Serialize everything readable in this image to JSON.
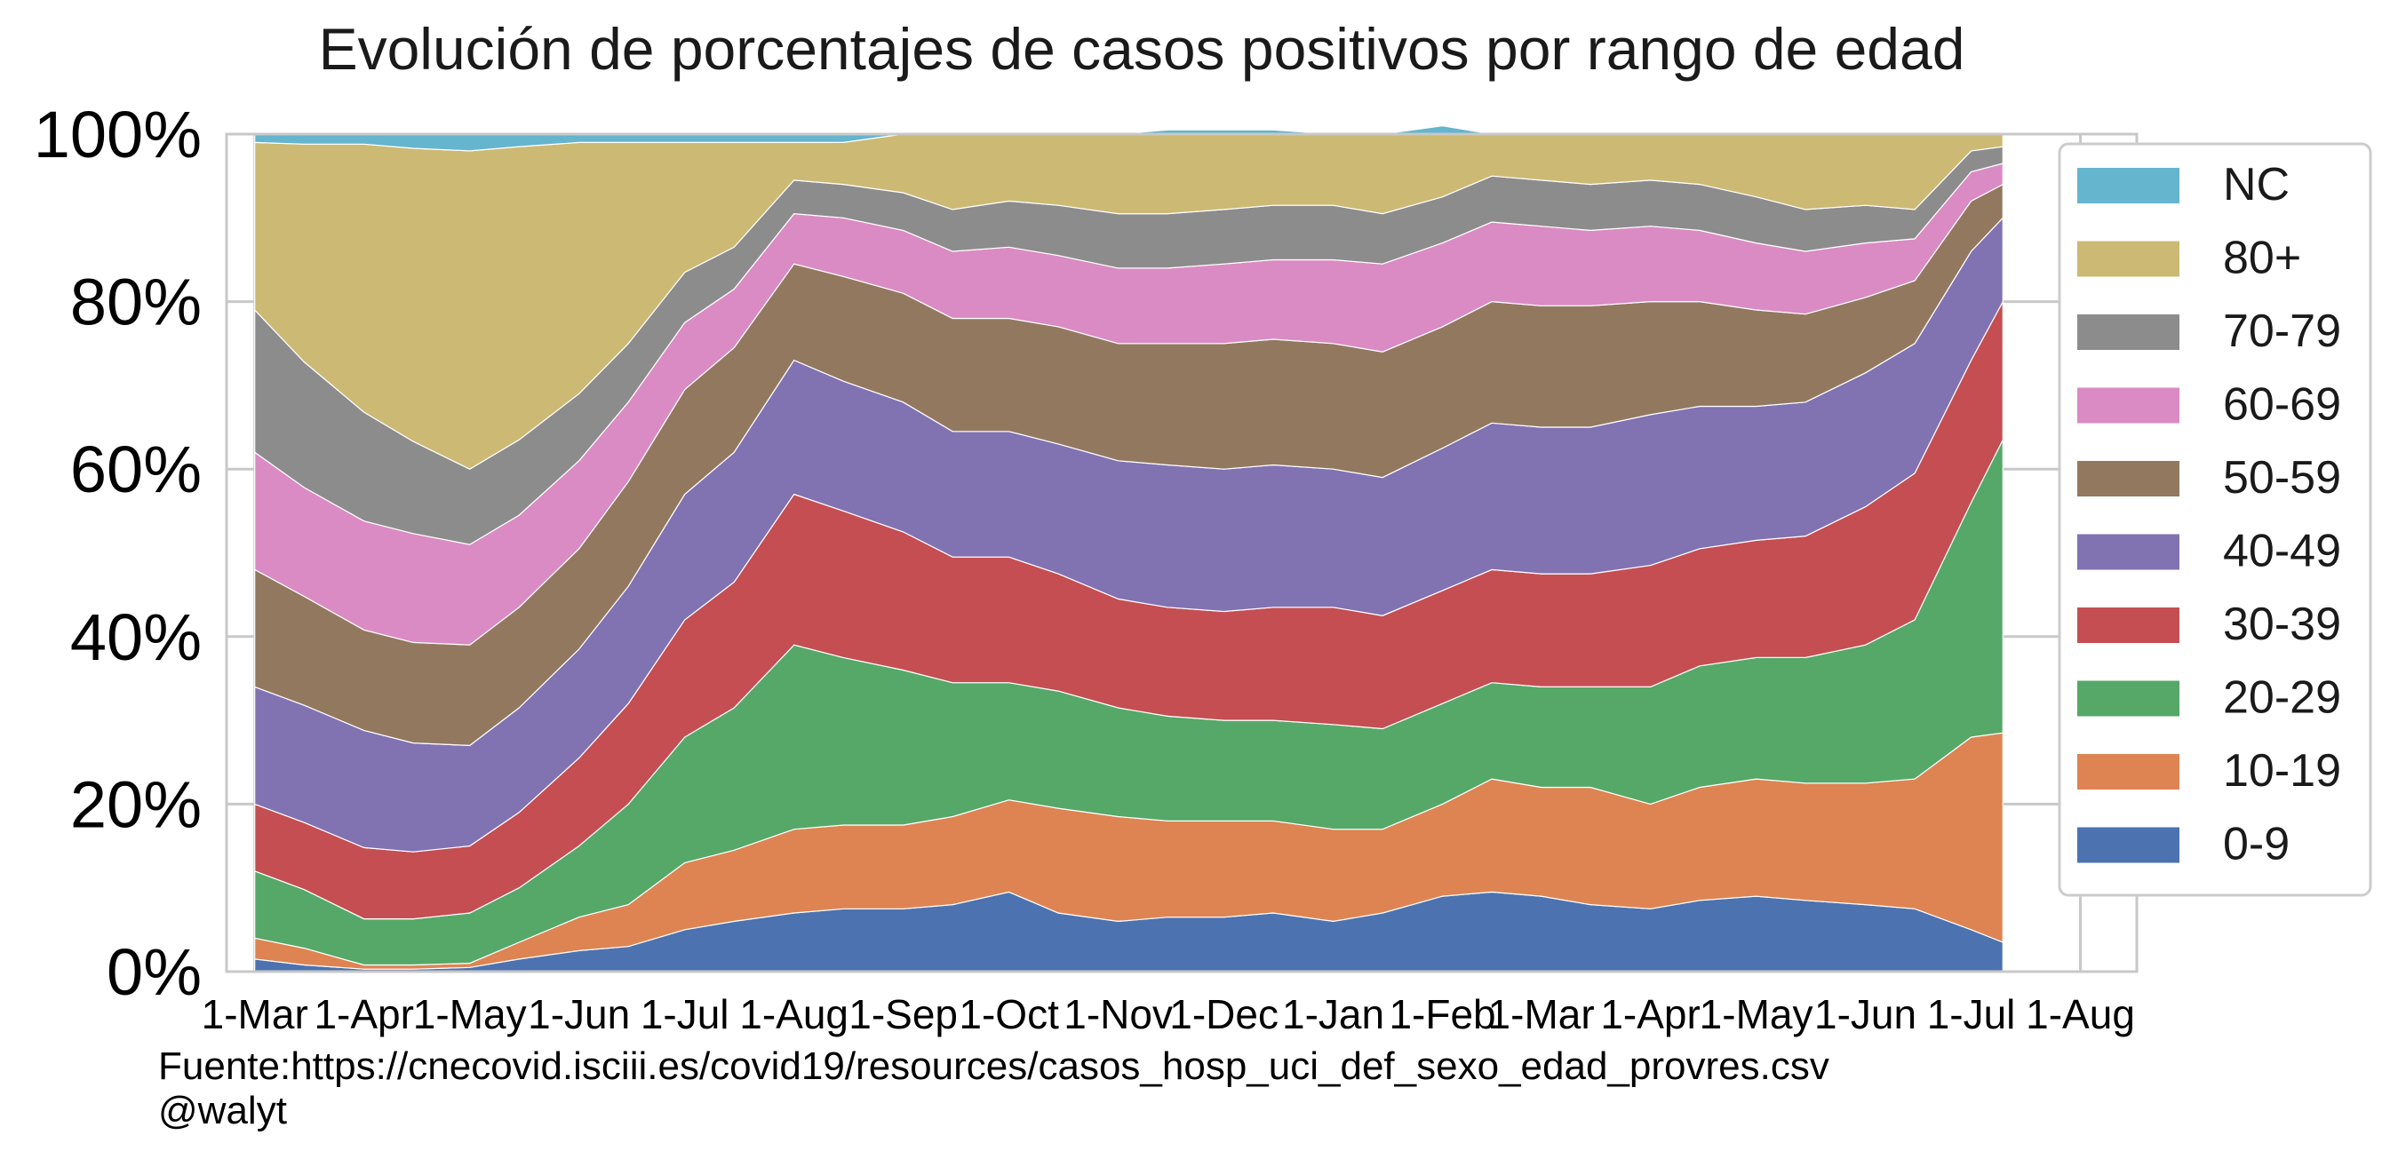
{
  "chart_data": {
    "type": "area",
    "stacked": true,
    "normalized": true,
    "title": "Evolución de porcentajes de casos positivos por rango de edad",
    "source": "Fuente:https://cnecovid.isciii.es/covid19/resources/casos_hosp_uci_def_sexo_edad_provres.csv",
    "author": "@walyt",
    "ylim": [
      0,
      100
    ],
    "yticks": [
      "0%",
      "20%",
      "40%",
      "60%",
      "80%",
      "100%"
    ],
    "ytick_values": [
      0,
      20,
      40,
      60,
      80,
      100
    ],
    "xticks": [
      "1-Mar",
      "1-Apr",
      "1-May",
      "1-Jun",
      "1-Jul",
      "1-Aug",
      "1-Sep",
      "1-Oct",
      "1-Nov",
      "1-Dec",
      "1-Jan",
      "1-Feb",
      "1-Mar",
      "1-Apr",
      "1-May",
      "1-Jun",
      "1-Jul",
      "1-Aug"
    ],
    "xtick_dates": [
      "2020-03-01",
      "2020-04-01",
      "2020-05-01",
      "2020-06-01",
      "2020-07-01",
      "2020-08-01",
      "2020-09-01",
      "2020-10-01",
      "2020-11-01",
      "2020-12-01",
      "2021-01-01",
      "2021-02-01",
      "2021-03-01",
      "2021-04-01",
      "2021-05-01",
      "2021-06-01",
      "2021-07-01",
      "2021-08-01"
    ],
    "xlim": [
      "2020-02-22",
      "2021-08-17"
    ],
    "grid": true,
    "legend_position": "right",
    "dates": [
      "2020-03-01",
      "2020-03-15",
      "2020-04-01",
      "2020-04-15",
      "2020-05-01",
      "2020-05-15",
      "2020-06-01",
      "2020-06-15",
      "2020-07-01",
      "2020-07-15",
      "2020-08-01",
      "2020-08-15",
      "2020-09-01",
      "2020-09-15",
      "2020-10-01",
      "2020-10-15",
      "2020-11-01",
      "2020-11-15",
      "2020-12-01",
      "2020-12-15",
      "2021-01-01",
      "2021-01-15",
      "2021-02-01",
      "2021-02-15",
      "2021-03-01",
      "2021-03-15",
      "2021-04-01",
      "2021-04-15",
      "2021-05-01",
      "2021-05-15",
      "2021-06-01",
      "2021-06-15",
      "2021-07-01",
      "2021-07-10"
    ],
    "series": [
      {
        "name": "0-9",
        "color": "#4c72b0",
        "values": [
          1.5,
          0.8,
          0.3,
          0.3,
          0.5,
          1.5,
          2.5,
          3.0,
          5.0,
          6.0,
          7.0,
          7.5,
          7.5,
          8.0,
          9.5,
          7.0,
          6.0,
          6.5,
          6.5,
          7.0,
          6.0,
          7.0,
          9.0,
          9.5,
          9.0,
          8.0,
          7.5,
          8.5,
          9.0,
          8.5,
          8.0,
          7.5,
          5.0,
          3.5
        ]
      },
      {
        "name": "10-19",
        "color": "#dd8452",
        "values": [
          2.5,
          2.0,
          0.5,
          0.5,
          0.5,
          2.0,
          4.0,
          5.0,
          8.0,
          8.5,
          10.0,
          10.0,
          10.0,
          10.5,
          11.0,
          12.5,
          12.5,
          11.5,
          11.5,
          11.0,
          11.0,
          10.0,
          11.0,
          13.5,
          13.0,
          14.0,
          12.5,
          13.5,
          14.0,
          14.0,
          14.5,
          15.5,
          23.0,
          25.0
        ]
      },
      {
        "name": "20-29",
        "color": "#55a868",
        "values": [
          8.0,
          7.0,
          5.5,
          5.5,
          6.0,
          6.5,
          8.5,
          12.0,
          15.0,
          17.0,
          22.0,
          20.0,
          18.5,
          16.0,
          14.0,
          14.0,
          13.0,
          12.5,
          12.0,
          12.0,
          12.5,
          12.0,
          12.0,
          11.5,
          12.0,
          12.0,
          14.0,
          14.5,
          14.5,
          15.0,
          16.5,
          19.0,
          28.0,
          35.0
        ]
      },
      {
        "name": "30-39",
        "color": "#c44e52",
        "values": [
          8.0,
          8.0,
          8.5,
          8.0,
          8.0,
          9.0,
          10.5,
          12.0,
          14.0,
          15.0,
          18.0,
          17.5,
          16.5,
          15.0,
          15.0,
          14.0,
          13.0,
          13.0,
          13.0,
          13.5,
          14.0,
          13.5,
          13.5,
          13.5,
          13.5,
          13.5,
          14.5,
          14.0,
          14.0,
          14.5,
          16.5,
          17.5,
          17.0,
          16.5
        ]
      },
      {
        "name": "40-49",
        "color": "#8172b2",
        "values": [
          14.0,
          14.0,
          14.0,
          13.0,
          12.0,
          12.5,
          13.0,
          14.0,
          15.0,
          15.5,
          16.0,
          15.5,
          15.5,
          15.0,
          15.0,
          15.5,
          16.5,
          17.0,
          17.0,
          17.0,
          16.5,
          16.5,
          17.0,
          17.5,
          17.5,
          17.5,
          18.0,
          17.0,
          16.0,
          16.0,
          16.0,
          15.5,
          13.0,
          10.0
        ]
      },
      {
        "name": "50-59",
        "color": "#937860",
        "values": [
          14.0,
          13.0,
          12.0,
          12.0,
          12.0,
          12.0,
          12.0,
          12.5,
          12.5,
          12.5,
          11.5,
          12.5,
          13.0,
          13.5,
          13.5,
          14.0,
          14.0,
          14.5,
          15.0,
          15.0,
          15.0,
          15.0,
          14.5,
          14.5,
          14.5,
          14.5,
          13.5,
          12.5,
          11.5,
          10.5,
          9.0,
          7.5,
          6.0,
          4.0
        ]
      },
      {
        "name": "60-69",
        "color": "#da8bc3",
        "values": [
          14.0,
          13.0,
          13.0,
          13.0,
          12.0,
          11.0,
          10.5,
          9.5,
          8.0,
          7.0,
          6.0,
          7.0,
          7.5,
          8.0,
          8.5,
          8.5,
          9.0,
          9.0,
          9.5,
          9.5,
          10.0,
          10.5,
          10.0,
          9.5,
          9.5,
          9.0,
          9.0,
          8.5,
          8.0,
          7.5,
          6.5,
          5.0,
          3.5,
          2.5
        ]
      },
      {
        "name": "70-79",
        "color": "#8c8c8c",
        "values": [
          17.0,
          15.0,
          13.0,
          11.0,
          9.0,
          9.0,
          8.0,
          7.0,
          6.0,
          5.0,
          4.0,
          4.0,
          4.5,
          5.0,
          5.5,
          6.0,
          6.5,
          6.5,
          6.5,
          6.5,
          6.5,
          6.0,
          5.5,
          5.5,
          5.5,
          5.5,
          5.5,
          5.5,
          5.5,
          5.0,
          4.5,
          3.5,
          2.5,
          2.0
        ]
      },
      {
        "name": "80+",
        "color": "#ccb974",
        "values": [
          20.0,
          26.0,
          32.0,
          35.0,
          38.0,
          35.0,
          30.0,
          24.0,
          15.5,
          12.5,
          4.5,
          5.0,
          7.0,
          9.0,
          8.0,
          8.5,
          9.5,
          10.0,
          9.5,
          9.0,
          8.5,
          9.5,
          8.5,
          5.0,
          5.5,
          6.0,
          5.5,
          6.0,
          7.5,
          9.0,
          8.5,
          9.0,
          2.0,
          1.5
        ]
      },
      {
        "name": "NC",
        "color": "#64b5cd",
        "values": [
          1.0,
          1.2,
          1.2,
          1.7,
          2.0,
          1.5,
          1.0,
          1.0,
          1.0,
          1.0,
          1.0,
          1.0,
          0.5,
          0.0,
          0.0,
          0.0,
          0.0,
          0.0,
          0.0,
          0.0,
          0.0,
          0.0,
          0.0,
          0.0,
          0.0,
          0.0,
          0.0,
          0.0,
          0.0,
          0.0,
          0.0,
          0.0,
          0.0,
          0.0
        ]
      }
    ]
  }
}
